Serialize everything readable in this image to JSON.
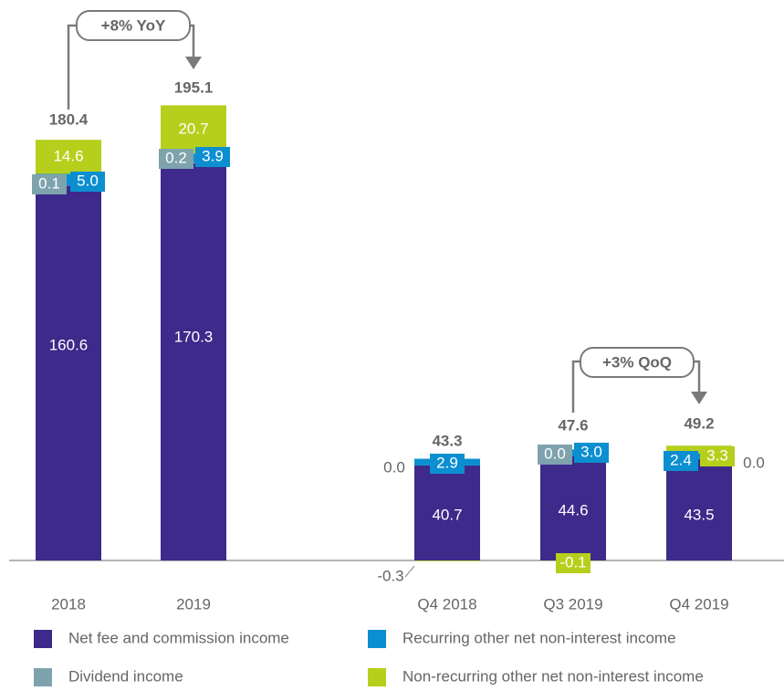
{
  "chart_data": {
    "type": "bar",
    "stacked": true,
    "categories": [
      "2018",
      "2019",
      "Q4 2018",
      "Q3 2019",
      "Q4 2019"
    ],
    "series": [
      {
        "name": "Net fee and commission income",
        "color": "#3d2a8a",
        "values": [
          160.6,
          170.3,
          40.7,
          44.6,
          43.5
        ],
        "value_labels": [
          "160.6",
          "170.3",
          "40.7",
          "44.6",
          "43.5"
        ]
      },
      {
        "name": "Dividend income",
        "color": "#7fa3ad",
        "values": [
          0.1,
          0.2,
          0,
          0,
          0
        ],
        "value_labels": [
          "0.1",
          "0.2",
          "0.0",
          "0.0",
          "0.0"
        ]
      },
      {
        "name": "Recurring other net non-interest income",
        "color": "#0c8fd0",
        "values": [
          5.0,
          3.9,
          2.9,
          3.0,
          2.4
        ],
        "value_labels": [
          "5.0",
          "3.9",
          "2.9",
          "3.0",
          "2.4"
        ]
      },
      {
        "name": "Non-recurring other net non-interest income",
        "color": "#b6cf1c",
        "values": [
          14.6,
          20.7,
          -0.3,
          -0.1,
          3.3
        ],
        "value_labels": [
          "14.6",
          "20.7",
          "-0.3",
          "-0.1",
          "3.3"
        ]
      }
    ],
    "totals": [
      180.4,
      195.1,
      43.3,
      47.6,
      49.2
    ],
    "annotations": [
      "+8% YoY",
      "+3% QoQ"
    ]
  }
}
